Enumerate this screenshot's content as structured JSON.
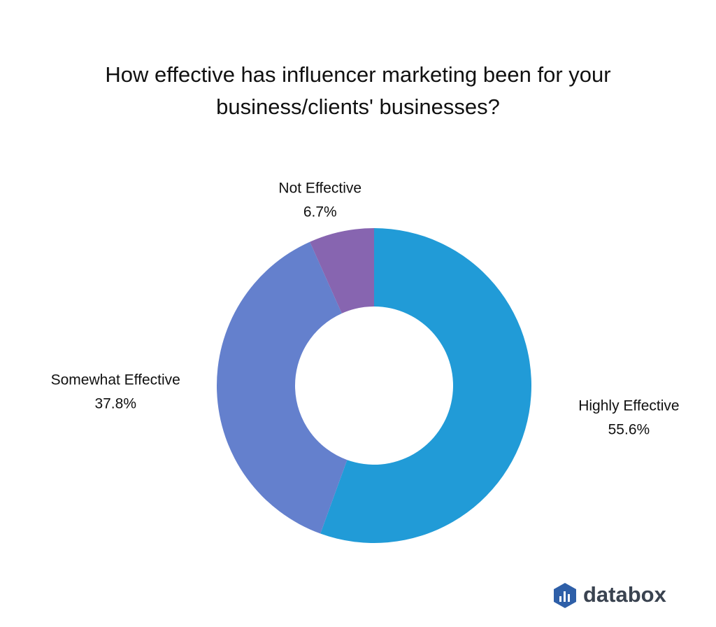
{
  "chart_data": {
    "type": "donut",
    "title": "How effective has influencer marketing been for your business/clients' businesses?",
    "categories": [
      "Highly Effective",
      "Somewhat Effective",
      "Not Effective"
    ],
    "values": [
      55.6,
      37.8,
      6.7
    ],
    "value_labels": [
      "55.6%",
      "37.8%",
      "6.7%"
    ],
    "colors": [
      "#219bd7",
      "#6480cd",
      "#8765b0"
    ]
  },
  "brand": "databox"
}
